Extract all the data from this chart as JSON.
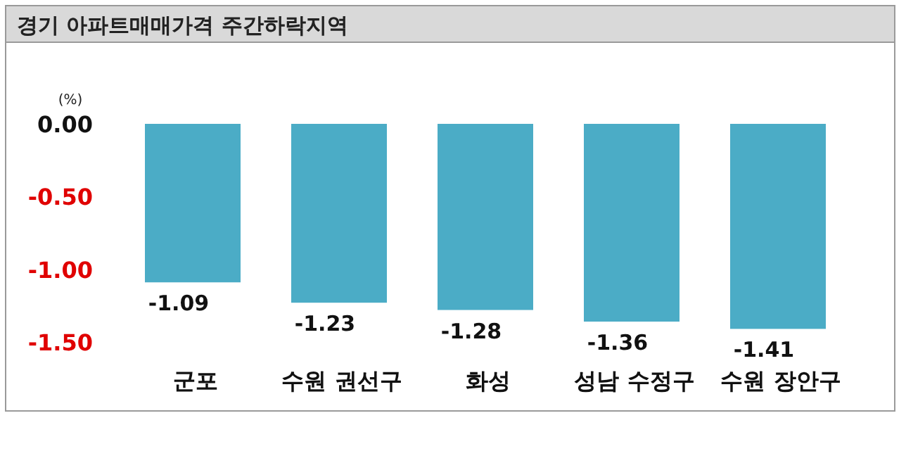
{
  "chart_data": {
    "type": "bar",
    "title": "경기 아파트매매가격 주간하락지역",
    "ylabel": "(%)",
    "categories": [
      "군포",
      "수원 권선구",
      "화성",
      "성남 수정구",
      "수원 장안구"
    ],
    "values": [
      -1.09,
      -1.23,
      -1.28,
      -1.36,
      -1.41
    ],
    "color": "#4bacc6",
    "data_labels": true,
    "grid": false,
    "ylim": [
      -1.5,
      0
    ],
    "yticks": [
      {
        "value": 0,
        "label": "0.00"
      },
      {
        "value": -0.5,
        "label": "-0.50"
      },
      {
        "value": -1,
        "label": "-1.00"
      },
      {
        "value": -1.5,
        "label": "-1.50"
      }
    ]
  }
}
